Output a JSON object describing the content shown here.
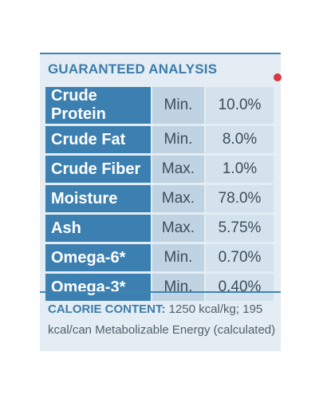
{
  "label": {
    "heading": "GUARANTEED ANALYSIS",
    "rows": [
      {
        "nutrient": "Crude Protein",
        "qualifier": "Min.",
        "value": "10.0%"
      },
      {
        "nutrient": "Crude Fat",
        "qualifier": "Min.",
        "value": "8.0%"
      },
      {
        "nutrient": "Crude Fiber",
        "qualifier": "Max.",
        "value": "1.0%"
      },
      {
        "nutrient": "Moisture",
        "qualifier": "Max.",
        "value": "78.0%"
      },
      {
        "nutrient": "Ash",
        "qualifier": "Max.",
        "value": "5.75%"
      },
      {
        "nutrient": "Omega-6*",
        "qualifier": "Min.",
        "value": "0.70%"
      },
      {
        "nutrient": "Omega-3*",
        "qualifier": "Min.",
        "value": "0.40%"
      }
    ],
    "calorie_label": "CALORIE CONTENT:",
    "calorie_text": "1250 kcal/kg; 195 kcal/can Metabolizable Energy (calculated)"
  },
  "colors": {
    "header_blue": "#3c7fb1",
    "panel_background": "#e3edf3",
    "accent_red": "#d8383e"
  }
}
